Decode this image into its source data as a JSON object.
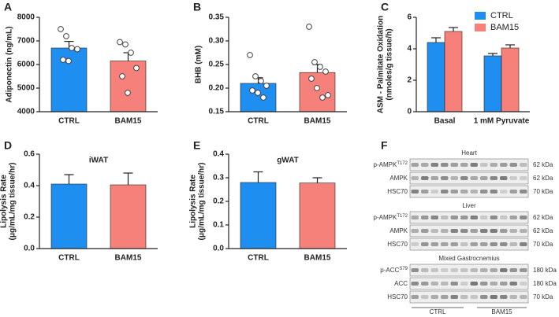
{
  "chart_data": [
    {
      "type": "bar",
      "panel_label": "A",
      "ylabel": [
        "Adiponectin (ng/mL)"
      ],
      "categories": [
        "CTRL",
        "BAM15"
      ],
      "values": [
        6700,
        6150
      ],
      "errors": [
        280,
        350
      ],
      "colors": [
        "#1e8ff0",
        "#f6807a"
      ],
      "points": [
        [
          7500,
          7200,
          6700,
          6650,
          6200,
          6150
        ],
        [
          6950,
          6850,
          6500,
          5850,
          5500,
          4800
        ]
      ],
      "ylim": [
        4000,
        8000
      ],
      "yticks": [
        4000,
        5000,
        6000,
        7000,
        8000
      ]
    },
    {
      "type": "bar",
      "panel_label": "B",
      "ylabel": [
        "BHB (mM)"
      ],
      "categories": [
        "CTRL",
        "BAM15"
      ],
      "values": [
        0.21,
        0.233
      ],
      "errors": [
        0.012,
        0.017
      ],
      "colors": [
        "#1e8ff0",
        "#f6807a"
      ],
      "points": [
        [
          0.27,
          0.225,
          0.215,
          0.205,
          0.195,
          0.19,
          0.18
        ],
        [
          0.33,
          0.255,
          0.245,
          0.235,
          0.22,
          0.2,
          0.18,
          0.185
        ]
      ],
      "ylim": [
        0.15,
        0.35
      ],
      "yticks": [
        0.15,
        {
          "value": 0.2,
          "label": "0.20"
        },
        0.25,
        {
          "value": 0.3,
          "label": "0.30"
        },
        0.35
      ]
    },
    {
      "type": "grouped-bar",
      "panel_label": "C",
      "ylabel": [
        "ASM - Palmitate Oxidation",
        "(nmoles/g tissue/h)"
      ],
      "categories": [
        "Basal",
        "1 mM Pyruvate"
      ],
      "series": [
        {
          "name": "CTRL",
          "color": "#1e8ff0",
          "values": [
            4.4,
            3.55
          ],
          "errors": [
            0.3,
            0.15
          ]
        },
        {
          "name": "BAM15",
          "color": "#f6807a",
          "values": [
            5.1,
            4.05
          ],
          "errors": [
            0.25,
            0.2
          ]
        }
      ],
      "ylim": [
        0,
        6
      ],
      "yticks": [
        0,
        2,
        4,
        6
      ],
      "legend": "top-right"
    },
    {
      "type": "bar",
      "panel_label": "D",
      "title": "iWAT",
      "ylabel": [
        "Lipolysis Rate",
        "(μg/mL/mg tissue/hr)"
      ],
      "categories": [
        "CTRL",
        "BAM15"
      ],
      "values": [
        0.41,
        0.405
      ],
      "errors": [
        0.06,
        0.075
      ],
      "colors": [
        "#1e8ff0",
        "#f6807a"
      ],
      "ylim": [
        0,
        0.6
      ],
      "yticks": [
        {
          "value": 0,
          "label": "0.0"
        },
        0.2,
        0.4,
        0.6
      ]
    },
    {
      "type": "bar",
      "panel_label": "E",
      "title": "gWAT",
      "ylabel": [
        "Lipolysis Rate",
        "(μg/mL/mg tissue/hr)"
      ],
      "categories": [
        "CTRL",
        "BAM15"
      ],
      "values": [
        0.28,
        0.278
      ],
      "errors": [
        0.045,
        0.022
      ],
      "colors": [
        "#1e8ff0",
        "#f6807a"
      ],
      "ylim": [
        0,
        0.4
      ],
      "yticks": [
        {
          "value": 0,
          "label": "0.0"
        },
        0.1,
        0.2,
        0.3,
        0.4
      ]
    }
  ],
  "blot": {
    "panel_label": "F",
    "groups": [
      "CTRL",
      "BAM15"
    ],
    "sections": [
      {
        "title": "Heart",
        "rows": [
          {
            "label": "p-AMPK",
            "sup": "T172",
            "size": "62 kDa"
          },
          {
            "label": "AMPK",
            "size": "62 kDa"
          },
          {
            "label": "HSC70",
            "size": "70 kDa"
          }
        ]
      },
      {
        "title": "Liver",
        "rows": [
          {
            "label": "p-AMPK",
            "sup": "T172",
            "size": "62 kDa"
          },
          {
            "label": "AMPK",
            "size": "62 kDa"
          },
          {
            "label": "HSC70",
            "size": "70 kDa"
          }
        ]
      },
      {
        "title": "Mixed Gastrocnemius",
        "rows": [
          {
            "label": "p-ACC",
            "sup": "S79",
            "size": "180 kDa"
          },
          {
            "label": "ACC",
            "size": "180 kDa"
          },
          {
            "label": "HSC70",
            "size": "70 kDa"
          }
        ]
      }
    ]
  }
}
